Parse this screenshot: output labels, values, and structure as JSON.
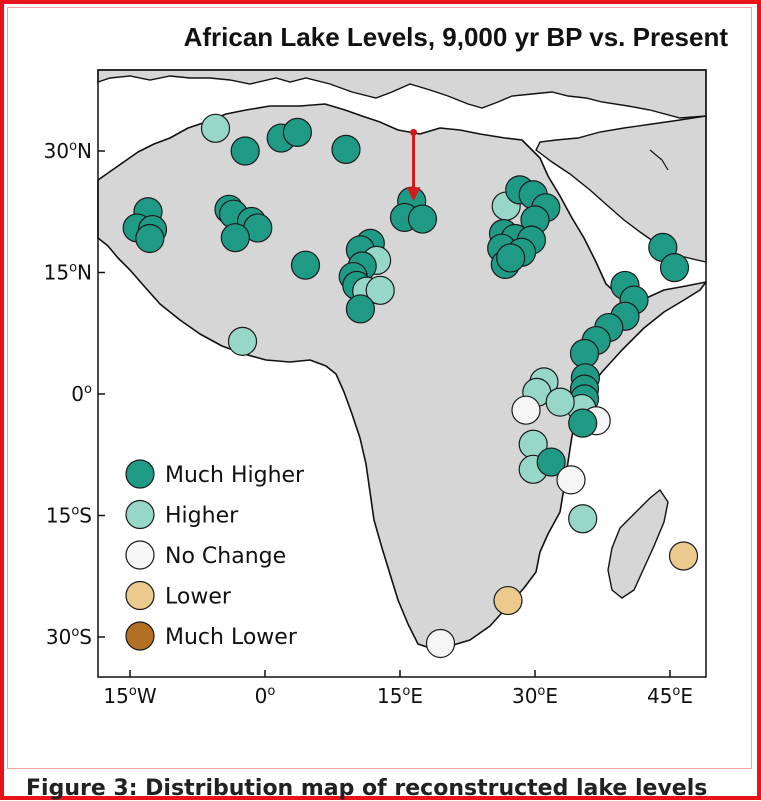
{
  "title": "African Lake Levels, 9,000 yr BP vs. Present",
  "caption": "Figure 3: Distribution map of reconstructed lake levels",
  "colors": {
    "land": "#d6d6d6",
    "ocean": "#ffffff",
    "coast": "#111111",
    "frame": "#e8141b",
    "arrow": "#d41b1b",
    "much_higher": "#1f9a85",
    "higher": "#97d7c7",
    "no_change": "#f5f5f5",
    "lower": "#ecc98d",
    "much_lower": "#b36f22"
  },
  "axes": {
    "x_ticks": [
      {
        "value": -15,
        "label": "15",
        "suffix": "W"
      },
      {
        "value": 0,
        "label": "0",
        "suffix": ""
      },
      {
        "value": 15,
        "label": "15",
        "suffix": "E"
      },
      {
        "value": 30,
        "label": "30",
        "suffix": "E"
      },
      {
        "value": 45,
        "label": "45",
        "suffix": "E"
      }
    ],
    "y_ticks": [
      {
        "value": 30,
        "label": "30",
        "suffix": "N"
      },
      {
        "value": 15,
        "label": "15",
        "suffix": "N"
      },
      {
        "value": 0,
        "label": "0",
        "suffix": ""
      },
      {
        "value": -15,
        "label": "15",
        "suffix": "S"
      },
      {
        "value": -30,
        "label": "30",
        "suffix": "S"
      }
    ],
    "lon_range": [
      -18,
      52
    ],
    "lat_range": [
      -35,
      40
    ]
  },
  "legend": {
    "placement": "bottom-left",
    "items": [
      {
        "key": "much_higher",
        "label": "Much Higher"
      },
      {
        "key": "higher",
        "label": "Higher"
      },
      {
        "key": "no_change",
        "label": "No Change"
      },
      {
        "key": "lower",
        "label": "Lower"
      },
      {
        "key": "much_lower",
        "label": "Much Lower"
      }
    ]
  },
  "arrow": {
    "from": [
      16.5,
      32.3
    ],
    "to": [
      16.5,
      23.8
    ]
  },
  "lakes": [
    {
      "lon": -5.5,
      "lat": 32.8,
      "cat": "higher"
    },
    {
      "lon": -2.2,
      "lat": 30.0,
      "cat": "much_higher"
    },
    {
      "lon": 1.8,
      "lat": 31.6,
      "cat": "much_higher"
    },
    {
      "lon": 3.6,
      "lat": 32.3,
      "cat": "much_higher"
    },
    {
      "lon": 9.0,
      "lat": 30.2,
      "cat": "much_higher"
    },
    {
      "lon": -13.0,
      "lat": 22.5,
      "cat": "much_higher"
    },
    {
      "lon": -14.2,
      "lat": 20.5,
      "cat": "much_higher"
    },
    {
      "lon": -12.5,
      "lat": 20.3,
      "cat": "much_higher"
    },
    {
      "lon": -12.8,
      "lat": 19.2,
      "cat": "much_higher"
    },
    {
      "lon": -4.0,
      "lat": 22.8,
      "cat": "much_higher"
    },
    {
      "lon": -3.5,
      "lat": 22.2,
      "cat": "much_higher"
    },
    {
      "lon": -1.5,
      "lat": 21.3,
      "cat": "much_higher"
    },
    {
      "lon": -0.8,
      "lat": 20.5,
      "cat": "much_higher"
    },
    {
      "lon": -3.3,
      "lat": 19.3,
      "cat": "much_higher"
    },
    {
      "lon": 4.5,
      "lat": 15.9,
      "cat": "much_higher"
    },
    {
      "lon": 11.7,
      "lat": 18.6,
      "cat": "much_higher"
    },
    {
      "lon": 10.6,
      "lat": 17.8,
      "cat": "much_higher"
    },
    {
      "lon": 12.4,
      "lat": 16.5,
      "cat": "higher"
    },
    {
      "lon": 10.8,
      "lat": 15.8,
      "cat": "much_higher"
    },
    {
      "lon": 9.8,
      "lat": 14.5,
      "cat": "much_higher"
    },
    {
      "lon": 10.2,
      "lat": 13.4,
      "cat": "much_higher"
    },
    {
      "lon": 11.3,
      "lat": 12.7,
      "cat": "higher"
    },
    {
      "lon": 12.8,
      "lat": 12.8,
      "cat": "higher"
    },
    {
      "lon": 10.6,
      "lat": 10.5,
      "cat": "much_higher"
    },
    {
      "lon": 16.3,
      "lat": 23.8,
      "cat": "much_higher"
    },
    {
      "lon": 15.5,
      "lat": 21.8,
      "cat": "much_higher"
    },
    {
      "lon": 17.5,
      "lat": 21.6,
      "cat": "much_higher"
    },
    {
      "lon": 26.8,
      "lat": 23.2,
      "cat": "higher"
    },
    {
      "lon": 28.3,
      "lat": 25.2,
      "cat": "much_higher"
    },
    {
      "lon": 29.8,
      "lat": 24.6,
      "cat": "much_higher"
    },
    {
      "lon": 31.2,
      "lat": 23.0,
      "cat": "much_higher"
    },
    {
      "lon": 30.0,
      "lat": 21.5,
      "cat": "much_higher"
    },
    {
      "lon": 26.5,
      "lat": 19.8,
      "cat": "much_higher"
    },
    {
      "lon": 27.8,
      "lat": 19.2,
      "cat": "much_higher"
    },
    {
      "lon": 29.6,
      "lat": 19.0,
      "cat": "much_higher"
    },
    {
      "lon": 26.3,
      "lat": 18.0,
      "cat": "much_higher"
    },
    {
      "lon": 28.5,
      "lat": 17.5,
      "cat": "much_higher"
    },
    {
      "lon": 26.7,
      "lat": 16.0,
      "cat": "much_higher"
    },
    {
      "lon": 27.3,
      "lat": 16.8,
      "cat": "much_higher"
    },
    {
      "lon": 44.2,
      "lat": 18.1,
      "cat": "much_higher"
    },
    {
      "lon": 45.5,
      "lat": 15.6,
      "cat": "much_higher"
    },
    {
      "lon": 40.0,
      "lat": 13.4,
      "cat": "much_higher"
    },
    {
      "lon": 41.0,
      "lat": 11.6,
      "cat": "much_higher"
    },
    {
      "lon": 40.0,
      "lat": 9.6,
      "cat": "much_higher"
    },
    {
      "lon": 38.2,
      "lat": 8.2,
      "cat": "much_higher"
    },
    {
      "lon": 36.8,
      "lat": 6.6,
      "cat": "much_higher"
    },
    {
      "lon": 35.5,
      "lat": 5.0,
      "cat": "much_higher"
    },
    {
      "lon": 35.6,
      "lat": 2.0,
      "cat": "much_higher"
    },
    {
      "lon": 35.5,
      "lat": 0.6,
      "cat": "much_higher"
    },
    {
      "lon": 35.5,
      "lat": -0.6,
      "cat": "much_higher"
    },
    {
      "lon": 35.2,
      "lat": -1.8,
      "cat": "higher"
    },
    {
      "lon": 36.8,
      "lat": -3.3,
      "cat": "no_change"
    },
    {
      "lon": 35.3,
      "lat": -3.6,
      "cat": "much_higher"
    },
    {
      "lon": 31.0,
      "lat": 1.5,
      "cat": "higher"
    },
    {
      "lon": 30.2,
      "lat": 0.2,
      "cat": "higher"
    },
    {
      "lon": 32.8,
      "lat": -1.0,
      "cat": "higher"
    },
    {
      "lon": 29.0,
      "lat": -2.0,
      "cat": "no_change"
    },
    {
      "lon": 29.8,
      "lat": -6.2,
      "cat": "higher"
    },
    {
      "lon": 29.8,
      "lat": -9.3,
      "cat": "higher"
    },
    {
      "lon": 31.8,
      "lat": -8.4,
      "cat": "much_higher"
    },
    {
      "lon": 34.0,
      "lat": -10.6,
      "cat": "no_change"
    },
    {
      "lon": 35.3,
      "lat": -15.4,
      "cat": "higher"
    },
    {
      "lon": -2.5,
      "lat": 6.5,
      "cat": "higher"
    },
    {
      "lon": 46.5,
      "lat": -20.0,
      "cat": "lower"
    },
    {
      "lon": 27.0,
      "lat": -25.5,
      "cat": "lower"
    },
    {
      "lon": 19.5,
      "lat": -30.8,
      "cat": "no_change"
    }
  ]
}
